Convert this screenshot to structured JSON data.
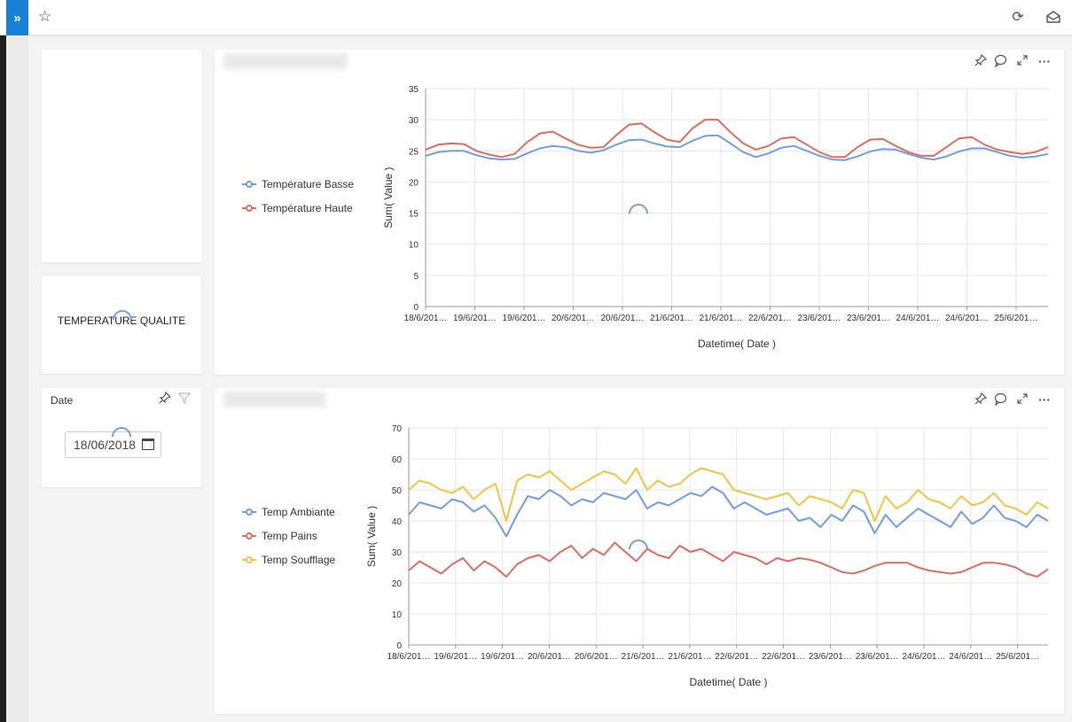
{
  "toolbar": {
    "expand_icon": "double-chevron-right-icon",
    "favorite_icon": "star-icon",
    "refresh_icon": "refresh-icon",
    "share_icon": "share-icon"
  },
  "quality_card": {
    "title": "TEMPERATURE QUALITE"
  },
  "date_filter": {
    "label": "Date",
    "value": "18/06/2018"
  },
  "chart1_legend": [
    "Température Basse",
    "Température Haute"
  ],
  "chart2_legend": [
    "Temp Ambiante",
    "Temp Pains",
    "Temp Soufflage"
  ],
  "colors": {
    "blue": "#6f9ee6",
    "red": "#e06c5f",
    "yellow": "#f5c342",
    "accent": "#1a82d6"
  },
  "chart_data": [
    {
      "type": "line",
      "xlabel": "Datetime( Date )",
      "ylabel": "Sum( Value )",
      "ylim": [
        0,
        35
      ],
      "yticks": [
        0,
        5,
        10,
        15,
        20,
        25,
        30,
        35
      ],
      "x_ticks": [
        "18/6/201…",
        "19/6/201…",
        "19/6/201…",
        "20/6/201…",
        "20/6/201…",
        "21/6/201…",
        "21/6/201…",
        "22/6/201…",
        "23/6/201…",
        "23/6/201…",
        "24/6/201…",
        "24/6/201…",
        "25/6/201…"
      ],
      "legend_position": "left",
      "grid": true,
      "series": [
        {
          "name": "Température Basse",
          "color": "#6f9ee6",
          "values": [
            24.2,
            24.8,
            25.0,
            25.0,
            24.3,
            23.8,
            23.6,
            23.7,
            24.6,
            25.4,
            25.8,
            25.6,
            25.0,
            24.7,
            25.1,
            26.0,
            26.7,
            26.8,
            26.2,
            25.7,
            25.6,
            26.6,
            27.4,
            27.5,
            26.2,
            24.8,
            24.0,
            24.6,
            25.5,
            25.8,
            25.0,
            24.2,
            23.6,
            23.5,
            24.1,
            24.9,
            25.3,
            25.2,
            24.5,
            23.9,
            23.6,
            24.1,
            24.9,
            25.4,
            25.4,
            24.8,
            24.2,
            23.9,
            24.1,
            24.5
          ]
        },
        {
          "name": "Température Haute",
          "color": "#e06c5f",
          "values": [
            25.2,
            26.0,
            26.2,
            26.1,
            25.0,
            24.4,
            24.0,
            24.5,
            26.4,
            27.8,
            28.1,
            27.0,
            26.0,
            25.5,
            25.6,
            27.5,
            29.2,
            29.4,
            28.0,
            26.8,
            26.4,
            28.6,
            30.0,
            30.0,
            28.0,
            26.2,
            25.2,
            25.8,
            27.0,
            27.2,
            26.0,
            24.8,
            24.0,
            24.0,
            25.6,
            26.8,
            26.9,
            25.8,
            24.8,
            24.2,
            24.2,
            25.6,
            27.0,
            27.2,
            26.0,
            25.2,
            24.8,
            24.5,
            24.8,
            25.6
          ]
        }
      ]
    },
    {
      "type": "line",
      "xlabel": "Datetime( Date )",
      "ylabel": "Sum( Value )",
      "ylim": [
        0,
        70
      ],
      "yticks": [
        0,
        10,
        20,
        30,
        40,
        50,
        60,
        70
      ],
      "x_ticks": [
        "18/6/201…",
        "19/6/201…",
        "19/6/201…",
        "20/6/201…",
        "20/6/201…",
        "21/6/201…",
        "21/6/201…",
        "22/6/201…",
        "22/6/201…",
        "23/6/201…",
        "23/6/201…",
        "24/6/201…",
        "24/6/201…",
        "25/6/201…"
      ],
      "legend_position": "left",
      "grid": true,
      "series": [
        {
          "name": "Temp Ambiante",
          "color": "#6f9ee6",
          "values": [
            42,
            46,
            45,
            44,
            47,
            46,
            43,
            45,
            41,
            35,
            42,
            48,
            47,
            50,
            48,
            45,
            47,
            46,
            49,
            48,
            47,
            50,
            44,
            46,
            45,
            47,
            49,
            48,
            51,
            49,
            44,
            46,
            44,
            42,
            43,
            44,
            40,
            41,
            38,
            42,
            40,
            45,
            43,
            36,
            42,
            38,
            41,
            44,
            42,
            40,
            38,
            43,
            39,
            41,
            45,
            41,
            40,
            38,
            42,
            40
          ]
        },
        {
          "name": "Temp Pains",
          "color": "#e06c5f",
          "values": [
            24,
            27,
            25,
            23,
            26,
            28,
            24,
            27,
            25,
            22,
            26,
            28,
            29,
            27,
            30,
            32,
            28,
            31,
            29,
            33,
            30,
            27,
            31,
            29,
            28,
            32,
            30,
            31,
            29,
            27,
            30,
            29,
            28,
            26,
            28,
            27,
            28,
            27.5,
            26.5,
            25,
            23.5,
            23,
            24,
            25.5,
            26.5,
            26.5,
            26.5,
            25,
            24,
            23.5,
            23,
            23.5,
            25,
            26.5,
            26.5,
            26,
            25,
            23,
            22,
            24.5
          ]
        },
        {
          "name": "Temp Soufflage",
          "color": "#f5c342",
          "values": [
            50,
            53,
            52,
            50,
            49,
            51,
            47,
            50,
            52,
            40,
            53,
            55,
            54,
            56,
            53,
            50,
            52,
            54,
            56,
            55,
            52,
            57,
            50,
            53,
            51,
            52,
            55,
            57,
            56,
            55,
            50,
            49,
            48,
            47,
            48,
            49,
            45,
            48,
            47,
            46,
            44,
            50,
            49,
            40,
            48,
            44,
            46,
            50,
            47,
            46,
            44,
            48,
            45,
            46,
            49,
            45,
            44,
            42,
            46,
            44
          ]
        }
      ]
    }
  ]
}
